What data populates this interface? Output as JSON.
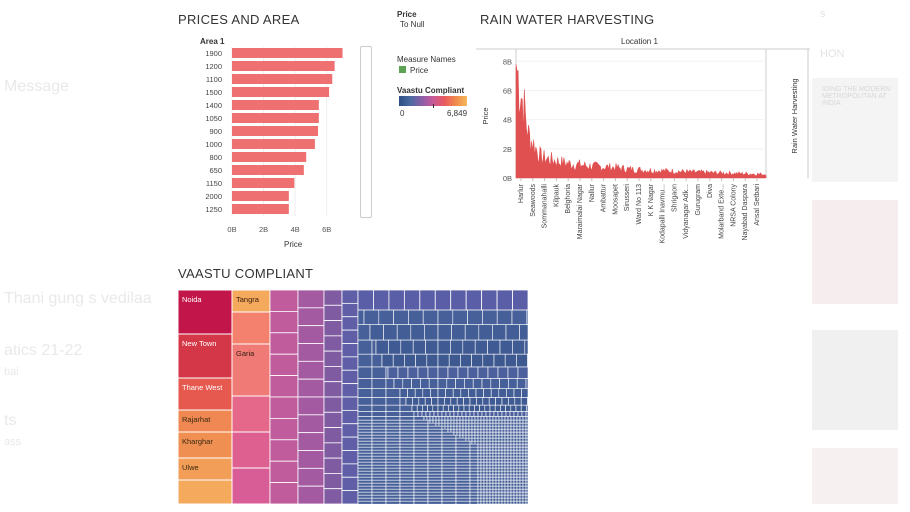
{
  "background": {
    "left_fragments": [
      "Message",
      "Thani gung s vedilaa",
      "atics 21-22",
      "bai",
      "ts",
      "ass"
    ],
    "right_fragments": [
      "s",
      "HON",
      "IDING THE MODERN METROPOLITAN AT INDIA"
    ]
  },
  "prices_area": {
    "title": "PRICES AND AREA",
    "row_header": "Area 1",
    "xlabel": "Price",
    "legend_title": "Price",
    "legend_value": "To Null"
  },
  "measure_legend": {
    "title": "Measure Names",
    "item": "Price",
    "item_color": "#5aa454"
  },
  "vastu_legend": {
    "title": "Vaastu Compliant",
    "min": "0",
    "max": "6,849"
  },
  "rain": {
    "title": "RAIN WATER HARVESTING",
    "column_header": "Location 1",
    "ylabel": "Price",
    "right_label": "Rain Water Harvesting"
  },
  "treemap": {
    "title": "VAASTU COMPLIANT",
    "labels": [
      "Noida",
      "New Town",
      "Thane West",
      "Rajarhat",
      "Kharghar",
      "Ulwe",
      "Tangra",
      "Garia"
    ]
  },
  "chart_data": [
    {
      "type": "bar",
      "title": "PRICES AND AREA",
      "categories": [
        "1900",
        "1200",
        "1100",
        "1500",
        "1400",
        "1050",
        "900",
        "1000",
        "800",
        "650",
        "1150",
        "2000",
        "1250"
      ],
      "values": [
        7.0,
        6.5,
        6.35,
        6.15,
        5.5,
        5.5,
        5.45,
        5.25,
        4.7,
        4.55,
        3.95,
        3.6,
        3.6
      ],
      "unit_note": "B",
      "xlabel": "Price",
      "ylabel": "Area 1",
      "xticks": [
        "0B",
        "2B",
        "4B",
        "6B"
      ],
      "xlim": [
        0,
        7.6
      ],
      "color": "#ee7070"
    },
    {
      "type": "area",
      "title": "RAIN WATER HARVESTING",
      "xlabel": "Location 1",
      "ylabel": "Price",
      "yticks": [
        "0B",
        "2B",
        "4B",
        "6B",
        "8B"
      ],
      "ylim": [
        0,
        8.5
      ],
      "x_tick_labels": [
        "Harlur",
        "Seawoods",
        "Sommanahalli",
        "Kilpauk",
        "Belghoria",
        "Maraimalai Nagar",
        "Nallur",
        "Ambattur",
        "Moosapet",
        "Sirusseri",
        "Ward No 113",
        "K K Nagar",
        "Kodapalli Inavmu...",
        "Shrigaon",
        "Vidyanagar Adk...",
        "Gurugram",
        "Diva",
        "Molarband Exte...",
        "NRSA Colony",
        "Nayabad Daspara",
        "Ansal Setbari"
      ],
      "values": [
        7.8,
        2.9,
        1.4,
        1.2,
        1.0,
        0.9,
        0.8,
        0.75,
        0.7,
        0.6,
        0.55,
        0.5,
        0.48,
        0.45,
        0.4,
        0.38,
        0.35,
        0.33,
        0.3,
        0.28,
        0.25
      ],
      "color": "#e05050"
    },
    {
      "type": "heatmap",
      "title": "VAASTU COMPLIANT",
      "labels": [
        "Noida",
        "New Town",
        "Thane West",
        "Rajarhat",
        "Kharghar",
        "Ulwe",
        "Tangra",
        "Garia"
      ],
      "color_range": [
        "0",
        "6,849"
      ]
    }
  ]
}
